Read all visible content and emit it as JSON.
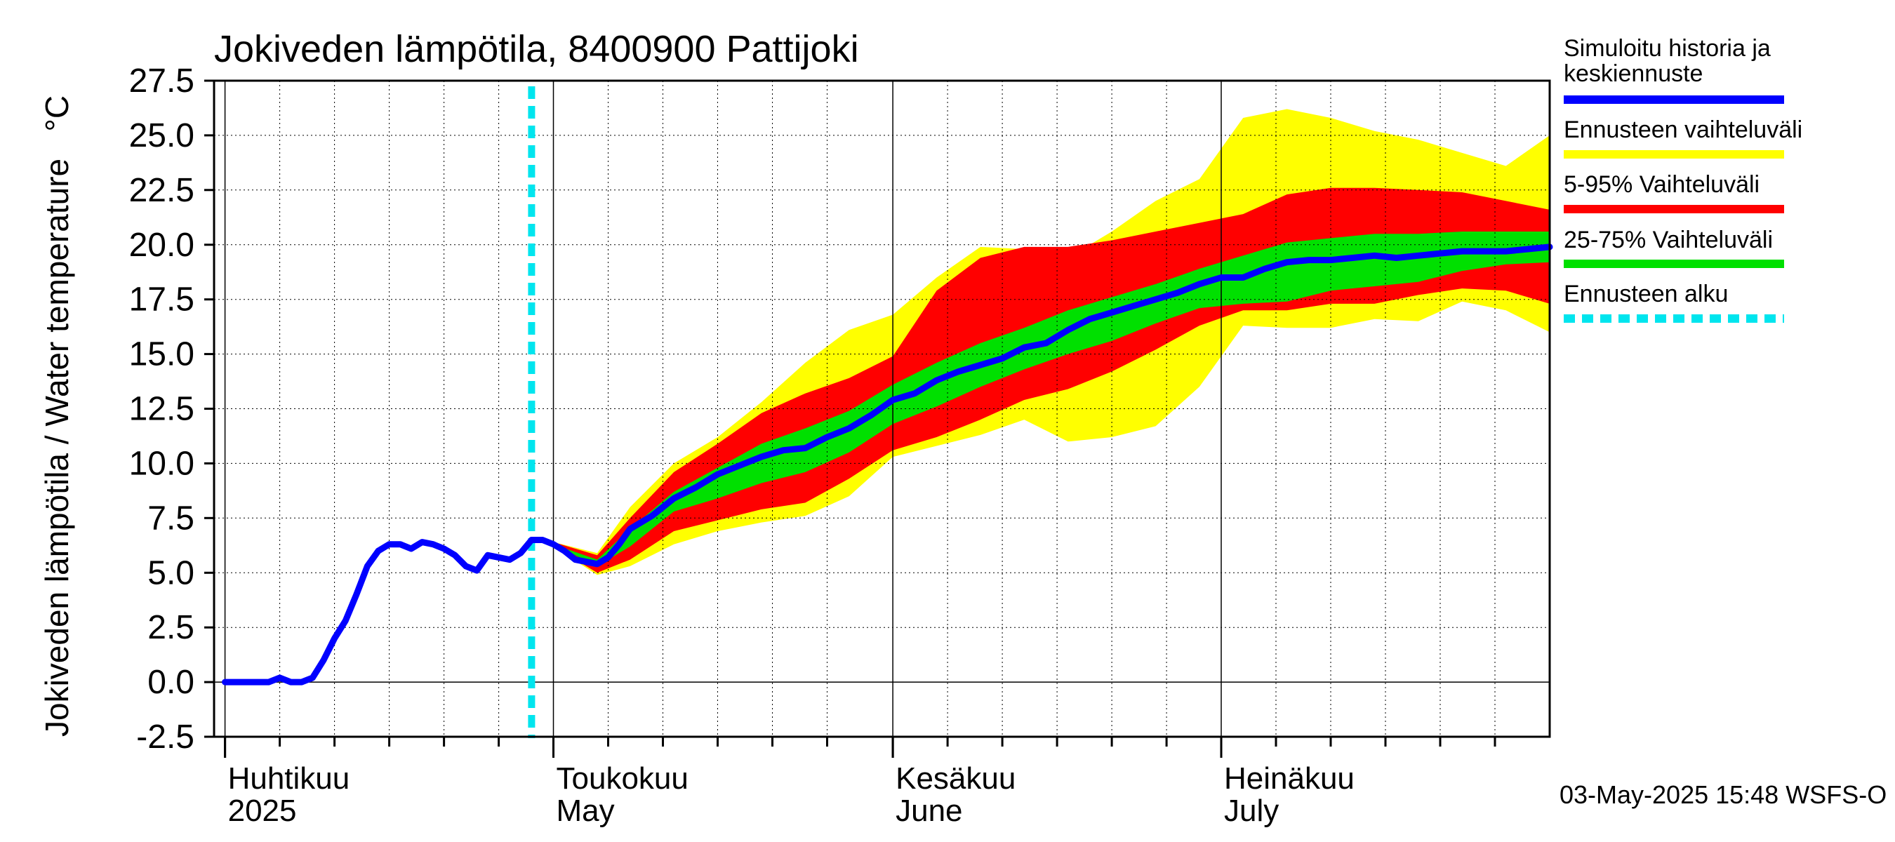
{
  "chart_data": {
    "type": "area",
    "title": "Jokiveden lämpötila, 8400900 Pattijoki",
    "ylabel": "Jokiveden lämpötila / Water temperature   °C",
    "ylim": [
      -2.5,
      27.5
    ],
    "y_ticks": [
      "27.5",
      "25.0",
      "22.5",
      "20.0",
      "17.5",
      "15.0",
      "12.5",
      "10.0",
      "7.5",
      "5.0",
      "2.5",
      "0.0",
      "-2.5"
    ],
    "xlim": [
      "2025-03-31",
      "2025-07-31"
    ],
    "grid": true,
    "legend_position": "right",
    "months": [
      {
        "fi": "Huhtikuu",
        "en": "2025",
        "date": "2025-04-01"
      },
      {
        "fi": "Toukokuu",
        "en": "May",
        "date": "2025-05-01"
      },
      {
        "fi": "Kesäkuu",
        "en": "June",
        "date": "2025-06-01"
      },
      {
        "fi": "Heinäkuu",
        "en": "July",
        "date": "2025-07-01"
      }
    ],
    "forecast_start": "2025-04-29",
    "timestamp": "03-May-2025 15:48 WSFS-O",
    "legend": [
      {
        "label": "Simuloitu historia ja keskiennuste",
        "color": "#0000ff",
        "style": "solid"
      },
      {
        "label": "Ennusteen vaihteluväli",
        "color": "#ffff00",
        "style": "solid"
      },
      {
        "label": "5-95% Vaihteluväli",
        "color": "#ff0000",
        "style": "solid"
      },
      {
        "label": "25-75% Vaihteluväli",
        "color": "#00e000",
        "style": "solid"
      },
      {
        "label": "Ennusteen alku",
        "color": "#00e5ee",
        "style": "dashed"
      }
    ],
    "colors": {
      "line": "#0000ff",
      "full": "#ffff00",
      "p5_95": "#ff0000",
      "p25_75": "#00e000",
      "start": "#00e5ee"
    },
    "series": [
      {
        "name": "Simuloitu historia ja keskiennuste",
        "points": [
          [
            "2025-04-01",
            0.0
          ],
          [
            "2025-04-05",
            0.0
          ],
          [
            "2025-04-06",
            0.2
          ],
          [
            "2025-04-07",
            0.0
          ],
          [
            "2025-04-08",
            0.0
          ],
          [
            "2025-04-09",
            0.2
          ],
          [
            "2025-04-10",
            1.0
          ],
          [
            "2025-04-11",
            2.0
          ],
          [
            "2025-04-12",
            2.8
          ],
          [
            "2025-04-13",
            4.0
          ],
          [
            "2025-04-14",
            5.3
          ],
          [
            "2025-04-15",
            6.0
          ],
          [
            "2025-04-16",
            6.3
          ],
          [
            "2025-04-17",
            6.3
          ],
          [
            "2025-04-18",
            6.1
          ],
          [
            "2025-04-19",
            6.4
          ],
          [
            "2025-04-20",
            6.3
          ],
          [
            "2025-04-21",
            6.1
          ],
          [
            "2025-04-22",
            5.8
          ],
          [
            "2025-04-23",
            5.3
          ],
          [
            "2025-04-24",
            5.1
          ],
          [
            "2025-04-25",
            5.8
          ],
          [
            "2025-04-26",
            5.7
          ],
          [
            "2025-04-27",
            5.6
          ],
          [
            "2025-04-28",
            5.9
          ],
          [
            "2025-04-29",
            6.5
          ],
          [
            "2025-04-30",
            6.5
          ],
          [
            "2025-05-01",
            6.3
          ],
          [
            "2025-05-02",
            6.0
          ],
          [
            "2025-05-03",
            5.6
          ],
          [
            "2025-05-04",
            5.5
          ],
          [
            "2025-05-05",
            5.4
          ],
          [
            "2025-05-06",
            5.7
          ],
          [
            "2025-05-07",
            6.3
          ],
          [
            "2025-05-08",
            7.0
          ],
          [
            "2025-05-10",
            7.6
          ],
          [
            "2025-05-12",
            8.4
          ],
          [
            "2025-05-14",
            8.9
          ],
          [
            "2025-05-16",
            9.5
          ],
          [
            "2025-05-18",
            9.9
          ],
          [
            "2025-05-20",
            10.3
          ],
          [
            "2025-05-22",
            10.6
          ],
          [
            "2025-05-24",
            10.7
          ],
          [
            "2025-05-26",
            11.2
          ],
          [
            "2025-05-28",
            11.6
          ],
          [
            "2025-05-30",
            12.2
          ],
          [
            "2025-06-01",
            12.9
          ],
          [
            "2025-06-03",
            13.2
          ],
          [
            "2025-06-05",
            13.8
          ],
          [
            "2025-06-07",
            14.2
          ],
          [
            "2025-06-09",
            14.5
          ],
          [
            "2025-06-11",
            14.8
          ],
          [
            "2025-06-13",
            15.3
          ],
          [
            "2025-06-15",
            15.5
          ],
          [
            "2025-06-17",
            16.1
          ],
          [
            "2025-06-19",
            16.6
          ],
          [
            "2025-06-21",
            16.9
          ],
          [
            "2025-06-23",
            17.2
          ],
          [
            "2025-06-25",
            17.5
          ],
          [
            "2025-06-27",
            17.8
          ],
          [
            "2025-06-29",
            18.2
          ],
          [
            "2025-07-01",
            18.5
          ],
          [
            "2025-07-03",
            18.5
          ],
          [
            "2025-07-05",
            18.9
          ],
          [
            "2025-07-07",
            19.2
          ],
          [
            "2025-07-09",
            19.3
          ],
          [
            "2025-07-11",
            19.3
          ],
          [
            "2025-07-13",
            19.4
          ],
          [
            "2025-07-15",
            19.5
          ],
          [
            "2025-07-17",
            19.4
          ],
          [
            "2025-07-19",
            19.5
          ],
          [
            "2025-07-21",
            19.6
          ],
          [
            "2025-07-23",
            19.7
          ],
          [
            "2025-07-25",
            19.7
          ],
          [
            "2025-07-27",
            19.7
          ],
          [
            "2025-07-29",
            19.8
          ],
          [
            "2025-07-31",
            19.9
          ]
        ]
      }
    ],
    "bands": [
      {
        "name": "Ennusteen vaihteluväli",
        "dates": [
          "2025-05-01",
          "2025-05-05",
          "2025-05-08",
          "2025-05-12",
          "2025-05-16",
          "2025-05-20",
          "2025-05-24",
          "2025-05-28",
          "2025-06-01",
          "2025-06-05",
          "2025-06-09",
          "2025-06-13",
          "2025-06-17",
          "2025-06-21",
          "2025-06-25",
          "2025-06-29",
          "2025-07-03",
          "2025-07-07",
          "2025-07-11",
          "2025-07-15",
          "2025-07-19",
          "2025-07-23",
          "2025-07-27",
          "2025-07-31"
        ],
        "lower": [
          6.2,
          4.9,
          5.3,
          6.3,
          6.9,
          7.3,
          7.6,
          8.5,
          10.3,
          10.8,
          11.3,
          12.0,
          11.0,
          11.2,
          11.7,
          13.5,
          16.3,
          16.2,
          16.2,
          16.6,
          16.5,
          17.4,
          17.0,
          16.0
        ],
        "upper": [
          6.4,
          5.9,
          8.0,
          10.0,
          11.2,
          12.8,
          14.6,
          16.1,
          16.8,
          18.5,
          19.9,
          19.8,
          19.4,
          20.6,
          22.0,
          23.0,
          25.8,
          26.2,
          25.8,
          25.2,
          24.8,
          24.2,
          23.6,
          25.0
        ]
      },
      {
        "name": "5-95% Vaihteluväli",
        "dates": [
          "2025-05-01",
          "2025-05-05",
          "2025-05-08",
          "2025-05-12",
          "2025-05-16",
          "2025-05-20",
          "2025-05-24",
          "2025-05-28",
          "2025-06-01",
          "2025-06-05",
          "2025-06-09",
          "2025-06-13",
          "2025-06-17",
          "2025-06-21",
          "2025-06-25",
          "2025-06-29",
          "2025-07-03",
          "2025-07-07",
          "2025-07-11",
          "2025-07-15",
          "2025-07-19",
          "2025-07-23",
          "2025-07-27",
          "2025-07-31"
        ],
        "lower": [
          6.2,
          5.0,
          5.6,
          6.9,
          7.4,
          7.9,
          8.2,
          9.3,
          10.6,
          11.2,
          12.0,
          12.9,
          13.4,
          14.2,
          15.2,
          16.3,
          17.0,
          17.0,
          17.3,
          17.3,
          17.7,
          18.0,
          17.9,
          17.3
        ],
        "upper": [
          6.4,
          5.8,
          7.5,
          9.6,
          10.9,
          12.3,
          13.2,
          13.9,
          14.9,
          17.9,
          19.4,
          19.9,
          19.9,
          20.2,
          20.6,
          21.0,
          21.4,
          22.3,
          22.6,
          22.6,
          22.5,
          22.4,
          22.0,
          21.6
        ]
      },
      {
        "name": "25-75% Vaihteluväli",
        "dates": [
          "2025-05-01",
          "2025-05-05",
          "2025-05-08",
          "2025-05-12",
          "2025-05-16",
          "2025-05-20",
          "2025-05-24",
          "2025-05-28",
          "2025-06-01",
          "2025-06-05",
          "2025-06-09",
          "2025-06-13",
          "2025-06-17",
          "2025-06-21",
          "2025-06-25",
          "2025-06-29",
          "2025-07-03",
          "2025-07-07",
          "2025-07-11",
          "2025-07-15",
          "2025-07-19",
          "2025-07-23",
          "2025-07-27",
          "2025-07-31"
        ],
        "lower": [
          6.3,
          5.3,
          6.2,
          7.8,
          8.4,
          9.1,
          9.6,
          10.5,
          11.8,
          12.6,
          13.5,
          14.3,
          15.0,
          15.6,
          16.4,
          17.1,
          17.3,
          17.4,
          17.9,
          18.1,
          18.3,
          18.8,
          19.1,
          19.2
        ],
        "upper": [
          6.3,
          5.6,
          7.0,
          8.7,
          9.8,
          10.9,
          11.6,
          12.4,
          13.6,
          14.6,
          15.5,
          16.2,
          17.0,
          17.6,
          18.2,
          18.9,
          19.5,
          20.1,
          20.3,
          20.5,
          20.5,
          20.6,
          20.6,
          20.6
        ]
      }
    ]
  }
}
